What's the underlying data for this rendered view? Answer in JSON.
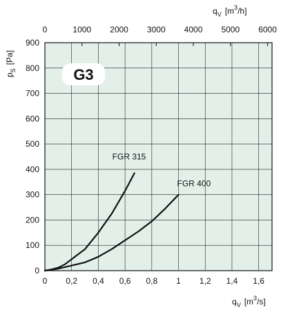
{
  "chart_data": {
    "type": "line",
    "badge": "G3",
    "background_color": "#e3efe9",
    "x_axis": {
      "quantity": "q",
      "subscript": "V",
      "unit_prefix": "[m",
      "unit_sup": "3",
      "unit_suffix": "/s]",
      "range": [
        0,
        1.7
      ],
      "ticks": [
        0,
        0.2,
        0.4,
        0.6,
        0.8,
        1,
        1.2,
        1.4,
        1.6
      ],
      "tick_labels": [
        "0",
        "0,2",
        "0,4",
        "0,6",
        "0,8",
        "1",
        "1,2",
        "1,4",
        "1,6"
      ]
    },
    "x2_axis": {
      "quantity": "q",
      "subscript": "V",
      "unit_prefix": "[m",
      "unit_sup": "3",
      "unit_suffix": "/h]",
      "range": [
        0,
        6120
      ],
      "ticks": [
        0,
        1000,
        2000,
        3000,
        4000,
        5000,
        6000
      ],
      "tick_labels": [
        "0",
        "1000",
        "2000",
        "3000",
        "4000",
        "5000",
        "6000"
      ]
    },
    "y_axis": {
      "quantity": "p",
      "subscript": "S",
      "unit": "[Pa]",
      "range": [
        0,
        900
      ],
      "ticks": [
        0,
        100,
        200,
        300,
        400,
        500,
        600,
        700,
        800,
        900
      ],
      "tick_labels": [
        "0",
        "100",
        "200",
        "300",
        "400",
        "500",
        "600",
        "700",
        "800",
        "900"
      ]
    },
    "grid": true,
    "series": [
      {
        "name": "FGR 315",
        "x": [
          0,
          0.05,
          0.1,
          0.15,
          0.2,
          0.3,
          0.4,
          0.5,
          0.6,
          0.67
        ],
        "y": [
          0,
          5,
          12,
          25,
          45,
          85,
          150,
          225,
          315,
          385
        ]
      },
      {
        "name": "FGR 400",
        "x": [
          0,
          0.1,
          0.2,
          0.3,
          0.4,
          0.5,
          0.6,
          0.7,
          0.8,
          0.9,
          1.0
        ],
        "y": [
          0,
          8,
          20,
          33,
          55,
          85,
          120,
          155,
          195,
          245,
          300
        ]
      }
    ]
  }
}
